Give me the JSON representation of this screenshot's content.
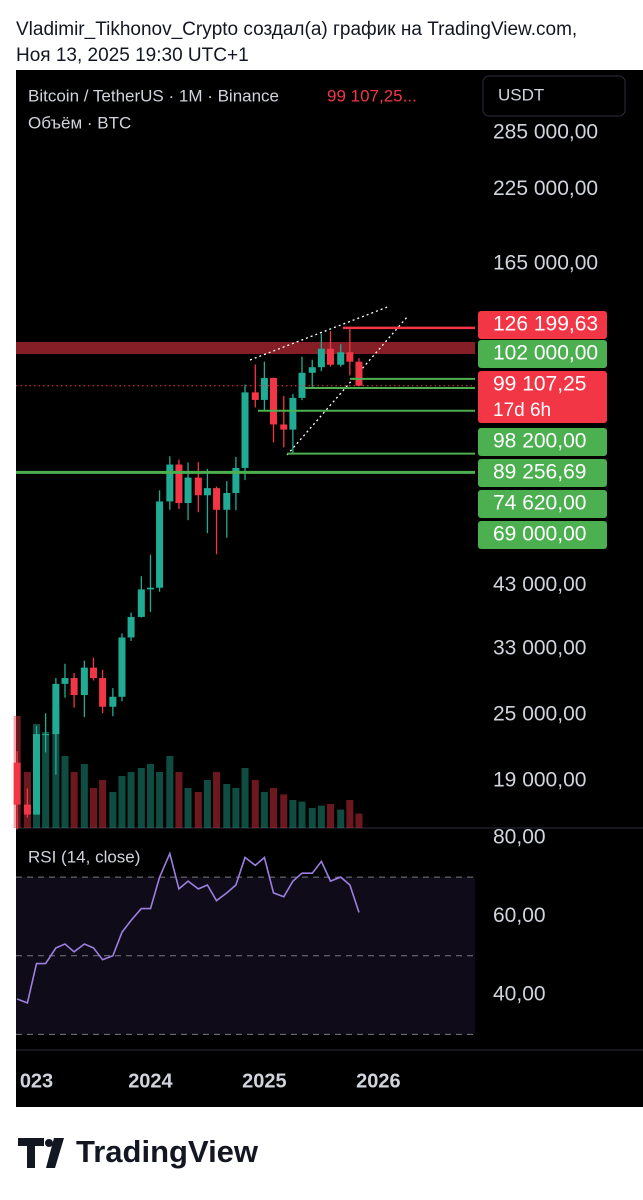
{
  "header": {
    "author_line": "Vladimir_Tikhonov_Crypto создал(а) график на TradingView.com,",
    "date_line": "Ноя 13, 2025 19:30 UTC+1"
  },
  "chart_data": {
    "type": "candlestick",
    "symbol": "Bitcoin / TetherUS · 1M · Binance",
    "last_price_text": "99 107,25...",
    "volume_title": "Объём · BTC",
    "currency": "USDT",
    "up_color": "#22ab94",
    "down_color": "#f23645",
    "log_scale": true,
    "x": [
      2022.83,
      2022.92,
      2023.0,
      2023.08,
      2023.17,
      2023.25,
      2023.33,
      2023.42,
      2023.5,
      2023.58,
      2023.67,
      2023.75,
      2023.83,
      2023.92,
      2024.0,
      2024.08,
      2024.17,
      2024.25,
      2024.33,
      2024.42,
      2024.5,
      2024.58,
      2024.67,
      2024.75,
      2024.83,
      2024.92,
      2025.0,
      2025.08,
      2025.17,
      2025.25,
      2025.33,
      2025.42,
      2025.5,
      2025.58,
      2025.67,
      2025.75,
      2025.83
    ],
    "open": [
      20500,
      17200,
      16500,
      23100,
      23100,
      28500,
      29200,
      27200,
      30500,
      29200,
      25900,
      27000,
      34600,
      37700,
      42300,
      42600,
      61100,
      71300,
      60700,
      67500,
      62700,
      64600,
      59000,
      63300,
      70300,
      96400,
      93400,
      102400,
      84300,
      82500,
      94200,
      104600,
      107100,
      115700,
      108200,
      114000,
      109600
    ],
    "high": [
      21500,
      18400,
      23900,
      25200,
      29200,
      31000,
      29800,
      31400,
      31800,
      30200,
      28000,
      35200,
      38400,
      44700,
      48900,
      64000,
      73800,
      72800,
      71900,
      72000,
      70000,
      65000,
      66500,
      73600,
      99600,
      108300,
      109600,
      102500,
      95000,
      95800,
      111900,
      110500,
      123200,
      124500,
      117900,
      126200,
      111200
    ],
    "low": [
      15500,
      16300,
      16500,
      21400,
      19500,
      26900,
      25800,
      24800,
      28900,
      25200,
      24900,
      26500,
      34100,
      37600,
      38500,
      41900,
      59000,
      59200,
      56500,
      58400,
      53500,
      49000,
      52500,
      58900,
      66800,
      90500,
      89200,
      78200,
      76600,
      74600,
      93300,
      98200,
      105300,
      107300,
      107300,
      103500,
      98900
    ],
    "close": [
      17200,
      16500,
      23100,
      23100,
      28500,
      29200,
      27200,
      30500,
      29200,
      25900,
      27000,
      34600,
      37700,
      42300,
      42600,
      61100,
      71300,
      60700,
      67500,
      62700,
      64600,
      59000,
      63300,
      70300,
      96400,
      93400,
      102400,
      84300,
      82500,
      94200,
      104600,
      107100,
      115700,
      108200,
      114000,
      109600,
      99107.25
    ],
    "volume": [
      1400000,
      700000,
      1300000,
      1200000,
      1500000,
      900000,
      700000,
      800000,
      500000,
      600000,
      450000,
      650000,
      700000,
      750000,
      800000,
      700000,
      900000,
      700000,
      500000,
      450000,
      600000,
      700000,
      550000,
      500000,
      750000,
      600000,
      450000,
      500000,
      420000,
      350000,
      330000,
      250000,
      280000,
      300000,
      230000,
      350000,
      180000
    ],
    "xlim": [
      2022.82,
      2026.98
    ],
    "xticks": [
      {
        "value": 2023,
        "label": "023"
      },
      2024,
      2025,
      2026
    ],
    "ylim": [
      15600,
      371000
    ],
    "yticks": [
      {
        "value": 285000,
        "label": "285 000,00"
      },
      {
        "value": 225000,
        "label": "225 000,00"
      },
      {
        "value": 165000,
        "label": "165 000,00"
      },
      {
        "value": 43000,
        "label": "43 000,00"
      },
      {
        "value": 33000,
        "label": "33 000,00"
      },
      {
        "value": 25000,
        "label": "25 000,00"
      },
      {
        "value": 19000,
        "label": "19 000,00"
      }
    ],
    "levels": [
      {
        "value": 126199.63,
        "label": "126 199,63",
        "color": "#f23645"
      },
      {
        "value": 102000,
        "label": "102 000,00",
        "color": "#4caf50"
      },
      {
        "value": 99107.25,
        "label": "99 107,25",
        "color": "#f23645",
        "countdown": "17d 6h"
      },
      {
        "value": 98200,
        "label": "98 200,00",
        "color": "#4caf50"
      },
      {
        "value": 89256.69,
        "label": "89 256,69",
        "color": "#4caf50"
      },
      {
        "value": 74620,
        "label": "74 620,00",
        "color": "#4caf50"
      },
      {
        "value": 69000,
        "label": "69 000,00",
        "color": "#4caf50"
      }
    ],
    "rsi": {
      "title": "RSI (14, close)",
      "color": "#9c7fe0",
      "values": [
        39,
        38,
        48,
        48,
        52,
        53,
        51,
        53,
        52,
        49,
        50,
        56,
        59,
        62,
        62,
        70,
        76,
        67,
        69,
        67,
        68,
        64,
        66,
        68,
        75,
        73,
        75,
        66,
        65,
        69,
        71,
        71,
        74,
        69,
        70,
        68,
        61
      ],
      "ylim": [
        27.3,
        82.5
      ],
      "band": [
        30,
        70
      ],
      "mid": 50,
      "yticks": [
        {
          "value": 80,
          "label": "80,00"
        },
        {
          "value": 60,
          "label": "60,00"
        },
        {
          "value": 40,
          "label": "40,00"
        }
      ]
    }
  },
  "footer": {
    "brand": "TradingView"
  }
}
